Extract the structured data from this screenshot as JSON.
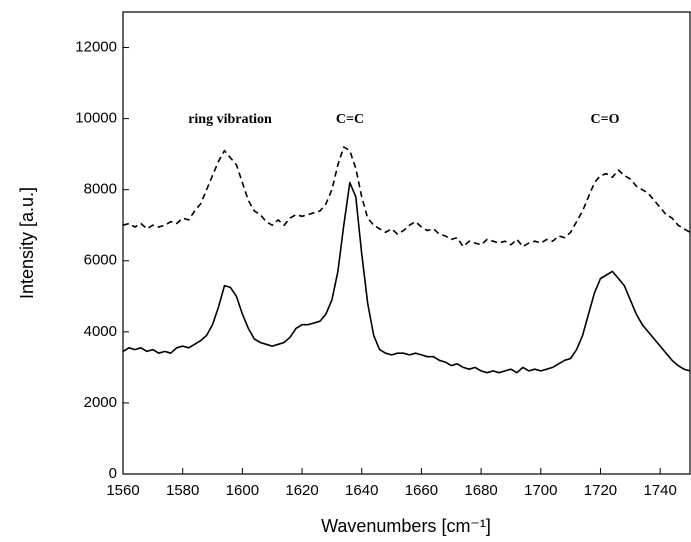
{
  "chart_data": {
    "type": "line",
    "x_label": "Wavenumbers [cm⁻¹]",
    "y_label": "Intensity [a.u.]",
    "annotations": [
      "ring vibration",
      "C=C",
      "C=O"
    ],
    "xlim": [
      1560,
      1750
    ],
    "ylim": [
      0,
      13000
    ],
    "xticks": [
      1560,
      1580,
      1600,
      1620,
      1640,
      1660,
      1680,
      1700,
      1720,
      1740
    ],
    "yticks": [
      0,
      2000,
      4000,
      6000,
      8000,
      10000,
      12000
    ],
    "grid": false,
    "x": [
      1560,
      1562,
      1564,
      1566,
      1568,
      1570,
      1572,
      1574,
      1576,
      1578,
      1580,
      1582,
      1584,
      1586,
      1588,
      1590,
      1592,
      1594,
      1596,
      1598,
      1600,
      1602,
      1604,
      1606,
      1608,
      1610,
      1612,
      1614,
      1616,
      1618,
      1620,
      1622,
      1624,
      1626,
      1628,
      1630,
      1632,
      1634,
      1636,
      1638,
      1640,
      1642,
      1644,
      1646,
      1648,
      1650,
      1652,
      1654,
      1656,
      1658,
      1660,
      1662,
      1664,
      1666,
      1668,
      1670,
      1672,
      1674,
      1676,
      1678,
      1680,
      1682,
      1684,
      1686,
      1688,
      1690,
      1692,
      1694,
      1696,
      1698,
      1700,
      1702,
      1704,
      1706,
      1708,
      1710,
      1712,
      1714,
      1716,
      1718,
      1720,
      1722,
      1724,
      1726,
      1728,
      1730,
      1732,
      1734,
      1736,
      1738,
      1740,
      1742,
      1744,
      1746,
      1748,
      1750
    ],
    "series": [
      {
        "color": "#000000",
        "line_style": "dashed",
        "values": [
          7000,
          7050,
          6950,
          7050,
          6900,
          7000,
          6950,
          7000,
          7100,
          7050,
          7200,
          7150,
          7400,
          7600,
          8000,
          8400,
          8800,
          9100,
          8900,
          8700,
          8200,
          7700,
          7400,
          7300,
          7100,
          7000,
          7150,
          7000,
          7200,
          7300,
          7250,
          7300,
          7350,
          7400,
          7600,
          8000,
          8700,
          9200,
          9100,
          8600,
          7800,
          7200,
          7000,
          6900,
          6800,
          6900,
          6750,
          6850,
          7000,
          7100,
          6950,
          6850,
          6900,
          6750,
          6700,
          6600,
          6650,
          6400,
          6550,
          6500,
          6450,
          6600,
          6550,
          6500,
          6550,
          6450,
          6600,
          6400,
          6500,
          6550,
          6500,
          6600,
          6550,
          6700,
          6650,
          6800,
          7100,
          7400,
          7800,
          8200,
          8400,
          8450,
          8350,
          8550,
          8400,
          8300,
          8100,
          8000,
          7900,
          7700,
          7500,
          7300,
          7200,
          7000,
          6900,
          6800
        ]
      },
      {
        "color": "#000000",
        "line_style": "solid",
        "values": [
          3450,
          3550,
          3500,
          3550,
          3450,
          3500,
          3400,
          3450,
          3400,
          3550,
          3600,
          3550,
          3650,
          3750,
          3900,
          4200,
          4700,
          5300,
          5250,
          5000,
          4500,
          4100,
          3800,
          3700,
          3650,
          3600,
          3650,
          3700,
          3850,
          4100,
          4200,
          4200,
          4250,
          4300,
          4500,
          4900,
          5700,
          7000,
          8200,
          7800,
          6200,
          4800,
          3900,
          3500,
          3400,
          3350,
          3400,
          3400,
          3350,
          3400,
          3350,
          3300,
          3300,
          3200,
          3150,
          3050,
          3100,
          3000,
          2950,
          3000,
          2900,
          2850,
          2900,
          2850,
          2900,
          2950,
          2850,
          3000,
          2900,
          2950,
          2900,
          2950,
          3000,
          3100,
          3200,
          3250,
          3500,
          3900,
          4500,
          5100,
          5500,
          5600,
          5700,
          5500,
          5300,
          4900,
          4500,
          4200,
          4000,
          3800,
          3600,
          3400,
          3200,
          3050,
          2950,
          2900
        ]
      }
    ]
  }
}
